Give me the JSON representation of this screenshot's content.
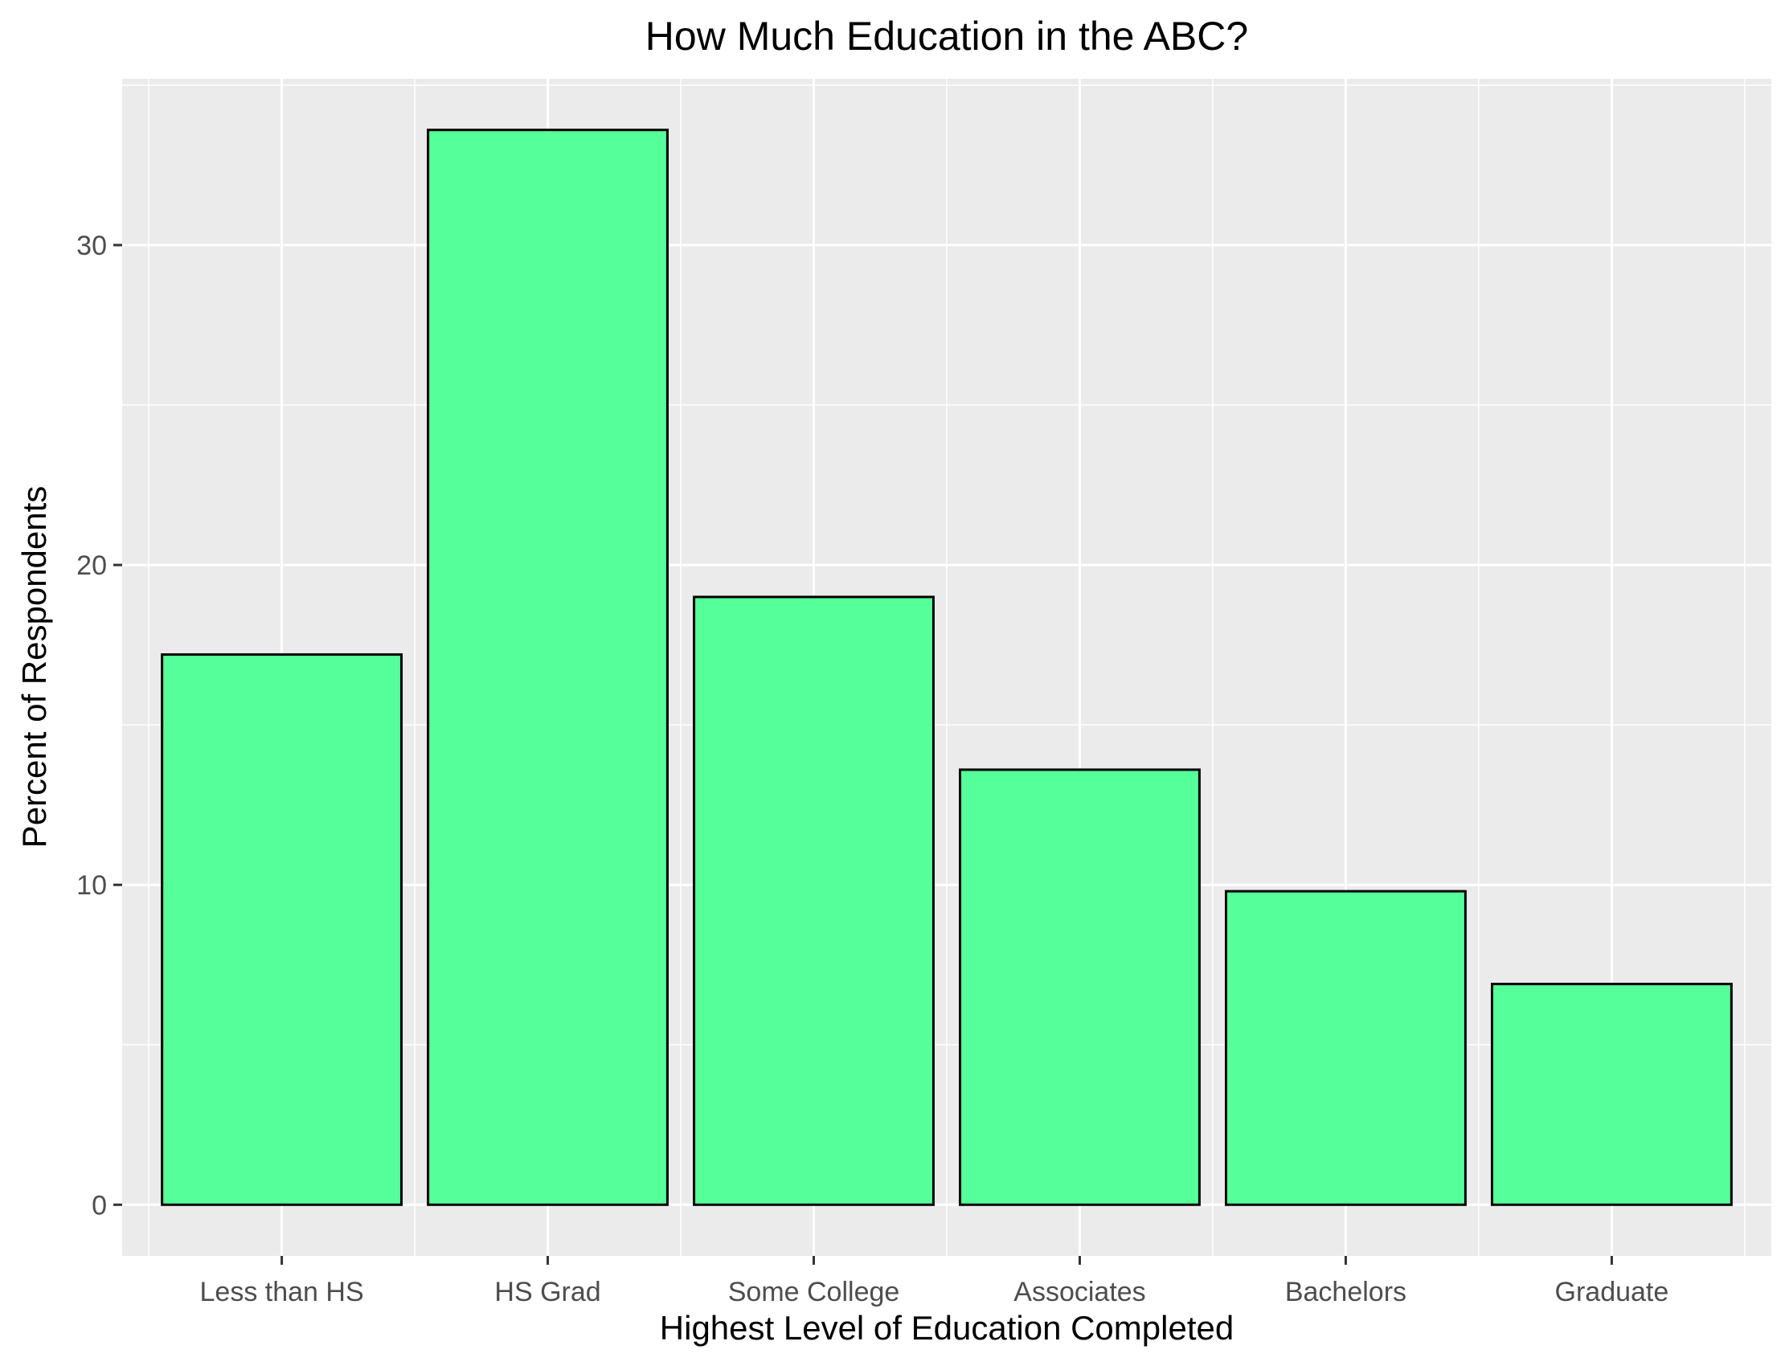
{
  "chart_data": {
    "type": "bar",
    "title": "How Much Education in the ABC?",
    "xlabel": "Highest Level of Education Completed",
    "ylabel": "Percent of Respondents",
    "categories": [
      "Less than HS",
      "HS Grad",
      "Some College",
      "Associates",
      "Bachelors",
      "Graduate"
    ],
    "values": [
      17.2,
      33.6,
      19.0,
      13.6,
      9.8,
      6.9
    ],
    "ylim": [
      -1.6,
      35.2
    ],
    "yticks": [
      0,
      10,
      20,
      30
    ],
    "ytick_labels": [
      "0",
      "10",
      "20",
      "30"
    ],
    "grid": true,
    "colors": {
      "bar_fill": "#55ff99",
      "bar_stroke": "#000000",
      "panel_background": "#ebebeb",
      "grid": "#ffffff",
      "tick_label": "#4d4d4d",
      "tick_mark": "#333333"
    }
  }
}
